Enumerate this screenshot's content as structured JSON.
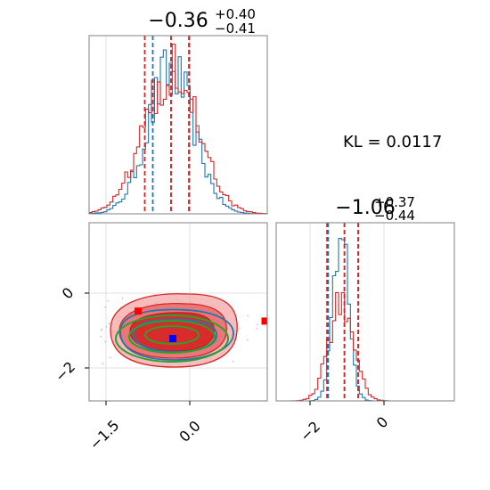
{
  "chart_data": [
    {
      "type": "histogram",
      "panel": "param1-marginal",
      "title_value": "−0.36",
      "title_plus": "+0.40",
      "title_minus": "−0.41",
      "xlim": [
        -2.2,
        1.8
      ],
      "series": [
        {
          "color": "#1f77b4",
          "quantiles": [
            -0.77,
            -0.36,
            0.04
          ]
        },
        {
          "color": "#d62728",
          "quantiles": [
            -0.95,
            -0.36,
            0.05
          ]
        }
      ]
    },
    {
      "type": "histogram",
      "panel": "param2-marginal",
      "title_value": "−1.06",
      "title_plus": "+0.37",
      "title_minus": "−0.44",
      "xlim": [
        -2.9,
        1.9
      ],
      "xticks": [
        "−2",
        "0"
      ],
      "series": [
        {
          "color": "#1f77b4",
          "quantiles": [
            -1.5,
            -1.06,
            -0.69
          ]
        },
        {
          "color": "#d62728",
          "quantiles": [
            -1.53,
            -1.06,
            -0.69
          ]
        }
      ]
    },
    {
      "type": "contour",
      "panel": "joint",
      "xlim": [
        -2.2,
        1.8
      ],
      "ylim": [
        -2.9,
        1.9
      ],
      "xticks": [
        "−1.5",
        "0.0"
      ],
      "yticks": [
        "0",
        "−2"
      ],
      "contour_colors": [
        "#1f77b4",
        "#d62728",
        "#2ca02c"
      ],
      "markers": [
        {
          "x": -1.1,
          "y": -0.48,
          "color": "#ff0000"
        },
        {
          "x": -0.32,
          "y": -1.22,
          "color": "#0000ff"
        },
        {
          "x": 1.75,
          "y": -0.75,
          "color": "#ff0000"
        }
      ]
    }
  ],
  "kl_label": "KL = 0.0117"
}
